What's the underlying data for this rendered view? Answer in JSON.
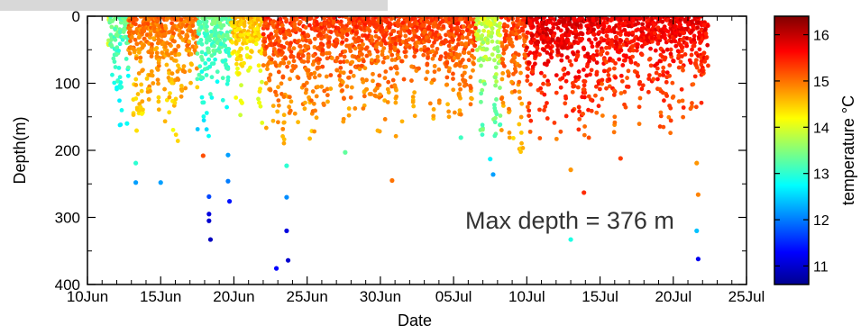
{
  "chart_data": {
    "type": "scatter",
    "xlabel": "Date",
    "ylabel": "Depth(m)",
    "x_range_days": [
      0,
      45
    ],
    "x_ticks": [
      {
        "label": "10Jun",
        "day": 0
      },
      {
        "label": "15Jun",
        "day": 5
      },
      {
        "label": "20Jun",
        "day": 10
      },
      {
        "label": "25Jun",
        "day": 15
      },
      {
        "label": "30Jun",
        "day": 20
      },
      {
        "label": "05Jul",
        "day": 25
      },
      {
        "label": "10Jul",
        "day": 30
      },
      {
        "label": "15Jul",
        "day": 35
      },
      {
        "label": "20Jul",
        "day": 40
      },
      {
        "label": "25Jul",
        "day": 45
      }
    ],
    "ylim": [
      0,
      400
    ],
    "y_inverted": true,
    "y_ticks": [
      0,
      100,
      200,
      300,
      400
    ],
    "annotation": "Max depth = 376 m",
    "colorbar": {
      "label": "temperature °C",
      "ticks": [
        11,
        12,
        13,
        14,
        15,
        16
      ],
      "range": [
        10.6,
        16.4
      ],
      "colormap": [
        "#00008f",
        "#0000ff",
        "#00ffff",
        "#ffff00",
        "#ff0000",
        "#800000"
      ]
    },
    "highlighted_points": [
      {
        "day": 12.9,
        "depth": 376,
        "temp": 11.3
      },
      {
        "day": 8.4,
        "depth": 333,
        "temp": 10.9
      },
      {
        "day": 13.7,
        "depth": 364,
        "temp": 11.0
      },
      {
        "day": 41.7,
        "depth": 362,
        "temp": 11.2
      },
      {
        "day": 8.3,
        "depth": 305,
        "temp": 11.0
      },
      {
        "day": 8.3,
        "depth": 295,
        "temp": 11.1
      },
      {
        "day": 13.6,
        "depth": 320,
        "temp": 11.1
      },
      {
        "day": 41.6,
        "depth": 320,
        "temp": 12.4
      },
      {
        "day": 33.0,
        "depth": 333,
        "temp": 12.9
      },
      {
        "day": 9.7,
        "depth": 276,
        "temp": 11.4
      },
      {
        "day": 13.6,
        "depth": 270,
        "temp": 12.1
      },
      {
        "day": 8.3,
        "depth": 269,
        "temp": 11.7
      },
      {
        "day": 3.3,
        "depth": 248,
        "temp": 12.2
      },
      {
        "day": 5.0,
        "depth": 248,
        "temp": 12.2
      },
      {
        "day": 9.6,
        "depth": 246,
        "temp": 12.0
      },
      {
        "day": 13.6,
        "depth": 223,
        "temp": 13.0
      },
      {
        "day": 33.9,
        "depth": 263,
        "temp": 15.4
      },
      {
        "day": 41.7,
        "depth": 266,
        "temp": 14.9
      },
      {
        "day": 20.8,
        "depth": 245,
        "temp": 15.0
      },
      {
        "day": 27.7,
        "depth": 236,
        "temp": 12.2
      },
      {
        "day": 33.0,
        "depth": 229,
        "temp": 14.8
      },
      {
        "day": 27.5,
        "depth": 213,
        "temp": 12.7
      },
      {
        "day": 3.3,
        "depth": 219,
        "temp": 13.0
      },
      {
        "day": 41.6,
        "depth": 219,
        "temp": 14.8
      },
      {
        "day": 36.4,
        "depth": 212,
        "temp": 15.3
      },
      {
        "day": 25.5,
        "depth": 181,
        "temp": 13.1
      },
      {
        "day": 17.6,
        "depth": 203,
        "temp": 13.3
      },
      {
        "day": 7.9,
        "depth": 208,
        "temp": 15.2
      },
      {
        "day": 9.6,
        "depth": 207,
        "temp": 12.2
      },
      {
        "day": 2.7,
        "depth": 160,
        "temp": 12.8
      }
    ]
  }
}
